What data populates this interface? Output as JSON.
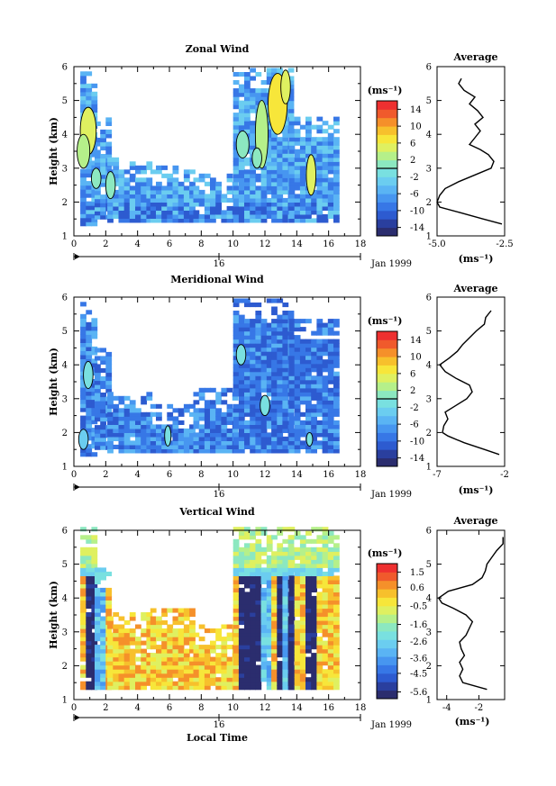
{
  "figure": {
    "shared_time_label": "Local Time",
    "date_marker_label": "16",
    "date_text": "Jan 1999",
    "colorbar_unit": "(ms⁻¹)",
    "colors": {
      "palette": [
        "#2b2d6e",
        "#2a3f9e",
        "#2d5bd0",
        "#3777e6",
        "#4796f0",
        "#5ab4f4",
        "#6bcdf0",
        "#79e0e0",
        "#8ce8c0",
        "#b5f08a",
        "#dff060",
        "#f7e63a",
        "#f7c02c",
        "#f5902a",
        "#f05a2c",
        "#ee3030"
      ]
    }
  },
  "chart_data": [
    {
      "type": "heatmap",
      "title": "Zonal Wind",
      "xlabel": "",
      "ylabel": "Height (km)",
      "xlim": [
        0,
        18
      ],
      "ylim": [
        1,
        6
      ],
      "x_ticks": [
        "0",
        "2",
        "4",
        "6",
        "8",
        "10",
        "12",
        "14",
        "16",
        "18"
      ],
      "y_ticks": [
        "1",
        "2",
        "3",
        "4",
        "5",
        "6"
      ],
      "colorbar": {
        "ticks": [
          "14",
          "10",
          "6",
          "2",
          "-2",
          "-6",
          "-10",
          "-14"
        ],
        "range": [
          -16,
          16
        ],
        "zero_line": 2
      },
      "profile": {
        "title": "Average",
        "xlabel": "(ms⁻¹)",
        "x_ticks": [
          "-5.0",
          "-2.5"
        ],
        "xlim": [
          -5,
          -2.5
        ],
        "heights": [
          1.35,
          1.5,
          1.7,
          1.85,
          2.0,
          2.2,
          2.4,
          2.6,
          2.8,
          3.0,
          3.2,
          3.4,
          3.55,
          3.7,
          3.9,
          4.1,
          4.3,
          4.5,
          4.7,
          4.9,
          5.1,
          5.3,
          5.5,
          5.65
        ],
        "values": [
          -2.6,
          -3.3,
          -4.2,
          -4.9,
          -5.0,
          -4.9,
          -4.7,
          -4.2,
          -3.6,
          -3.0,
          -2.9,
          -3.1,
          -3.4,
          -3.8,
          -3.6,
          -3.4,
          -3.6,
          -3.3,
          -3.5,
          -3.8,
          -3.6,
          -4.0,
          -4.2,
          -4.1
        ]
      },
      "coverage": [
        [
          0.4,
          1.3,
          1.3,
          5.85
        ],
        [
          1.3,
          2.1,
          1.5,
          4.6
        ],
        [
          2.1,
          4.8,
          1.4,
          3.3
        ],
        [
          4.8,
          7.5,
          1.4,
          3.0
        ],
        [
          7.5,
          10.0,
          1.4,
          2.8
        ],
        [
          10.0,
          12.4,
          1.4,
          5.9
        ],
        [
          12.4,
          13.5,
          1.4,
          5.9
        ],
        [
          13.5,
          16.3,
          1.4,
          4.5
        ]
      ],
      "patches": [
        [
          0.9,
          4.1,
          0.5,
          0.7,
          10
        ],
        [
          0.6,
          3.5,
          0.4,
          0.5,
          9
        ],
        [
          1.4,
          2.7,
          0.3,
          0.3,
          8
        ],
        [
          2.3,
          2.5,
          0.3,
          0.4,
          8
        ],
        [
          11.8,
          4.0,
          0.4,
          1.0,
          9
        ],
        [
          12.8,
          4.9,
          0.6,
          0.9,
          11
        ],
        [
          13.3,
          5.4,
          0.3,
          0.5,
          10
        ],
        [
          14.9,
          2.8,
          0.3,
          0.6,
          10
        ],
        [
          10.6,
          3.7,
          0.4,
          0.4,
          8
        ],
        [
          11.5,
          3.3,
          0.3,
          0.3,
          8
        ]
      ]
    },
    {
      "type": "heatmap",
      "title": "Meridional Wind",
      "xlabel": "",
      "ylabel": "Height (km)",
      "xlim": [
        0,
        18
      ],
      "ylim": [
        1,
        6
      ],
      "x_ticks": [
        "0",
        "2",
        "4",
        "6",
        "8",
        "10",
        "12",
        "14",
        "16",
        "18"
      ],
      "y_ticks": [
        "1",
        "2",
        "3",
        "4",
        "5",
        "6"
      ],
      "colorbar": {
        "ticks": [
          "14",
          "10",
          "6",
          "2",
          "-2",
          "-6",
          "-10",
          "-14"
        ],
        "range": [
          -16,
          16
        ],
        "zero_line": 2
      },
      "profile": {
        "title": "Average",
        "xlabel": "(ms⁻¹)",
        "x_ticks": [
          "-7",
          "-2"
        ],
        "xlim": [
          -7,
          -2
        ],
        "heights": [
          1.35,
          1.5,
          1.7,
          1.9,
          2.0,
          2.2,
          2.4,
          2.6,
          2.8,
          3.0,
          3.2,
          3.4,
          3.6,
          3.8,
          4.0,
          4.2,
          4.4,
          4.6,
          4.8,
          5.0,
          5.2,
          5.4,
          5.6
        ],
        "values": [
          -2.4,
          -3.5,
          -5.0,
          -6.2,
          -6.6,
          -6.5,
          -6.2,
          -6.4,
          -5.6,
          -4.8,
          -4.4,
          -4.6,
          -5.6,
          -6.4,
          -6.8,
          -6.1,
          -5.5,
          -5.1,
          -4.6,
          -4.1,
          -3.5,
          -3.4,
          -3.0
        ]
      },
      "coverage": [
        [
          0.4,
          1.3,
          1.3,
          5.85
        ],
        [
          1.3,
          2.1,
          1.5,
          4.5
        ],
        [
          2.1,
          4.8,
          1.4,
          3.1
        ],
        [
          4.8,
          7.5,
          1.4,
          2.8
        ],
        [
          7.5,
          10.0,
          1.4,
          3.3
        ],
        [
          10.0,
          12.4,
          1.4,
          5.9
        ],
        [
          12.4,
          13.5,
          1.4,
          5.9
        ],
        [
          13.5,
          16.3,
          1.4,
          5.3
        ]
      ],
      "patches": [
        [
          0.9,
          3.7,
          0.3,
          0.4,
          7
        ],
        [
          0.6,
          1.8,
          0.3,
          0.3,
          6
        ],
        [
          5.9,
          1.9,
          0.2,
          0.3,
          7
        ],
        [
          10.5,
          4.3,
          0.3,
          0.3,
          7
        ],
        [
          12.0,
          2.8,
          0.3,
          0.3,
          7
        ],
        [
          14.8,
          1.8,
          0.2,
          0.2,
          7
        ]
      ]
    },
    {
      "type": "heatmap",
      "title": "Vertical Wind",
      "xlabel": "Local Time",
      "ylabel": "Height (km)",
      "xlim": [
        0,
        18
      ],
      "ylim": [
        1,
        6
      ],
      "x_ticks": [
        "0",
        "2",
        "4",
        "6",
        "8",
        "10",
        "12",
        "14",
        "16",
        "18"
      ],
      "y_ticks": [
        "1",
        "2",
        "3",
        "4",
        "5",
        "6"
      ],
      "colorbar": {
        "ticks": [
          "1.5",
          "0.6",
          "-0.5",
          "-1.6",
          "-2.6",
          "-3.6",
          "-4.5",
          "-5.6"
        ],
        "range": [
          -6.0,
          2.0
        ],
        "zero_line": null
      },
      "profile": {
        "title": "Average",
        "xlabel": "(ms⁻¹)",
        "x_ticks": [
          "-4",
          "-2"
        ],
        "xlim": [
          -4.6,
          -0.4
        ],
        "heights": [
          1.3,
          1.5,
          1.7,
          1.9,
          2.1,
          2.3,
          2.5,
          2.7,
          2.9,
          3.1,
          3.3,
          3.5,
          3.7,
          3.85,
          4.0,
          4.2,
          4.4,
          4.6,
          4.8,
          5.0,
          5.2,
          5.4,
          5.6,
          5.8
        ],
        "values": [
          -1.5,
          -3.0,
          -3.2,
          -3.0,
          -3.2,
          -2.9,
          -3.1,
          -3.2,
          -2.8,
          -2.6,
          -2.4,
          -2.8,
          -3.6,
          -4.3,
          -4.5,
          -3.9,
          -2.4,
          -1.8,
          -1.6,
          -1.5,
          -1.2,
          -0.9,
          -0.5,
          -0.5
        ]
      },
      "coverage": [
        [
          0.4,
          1.3,
          1.3,
          6.0
        ],
        [
          1.3,
          2.1,
          1.3,
          4.9
        ],
        [
          2.1,
          4.8,
          1.3,
          3.5
        ],
        [
          4.8,
          7.5,
          1.3,
          3.7
        ],
        [
          7.5,
          10.0,
          1.3,
          3.2
        ],
        [
          10.0,
          12.4,
          1.3,
          6.0
        ],
        [
          12.4,
          13.5,
          1.3,
          6.0
        ],
        [
          13.5,
          16.3,
          1.3,
          6.0
        ]
      ],
      "patches": []
    }
  ]
}
